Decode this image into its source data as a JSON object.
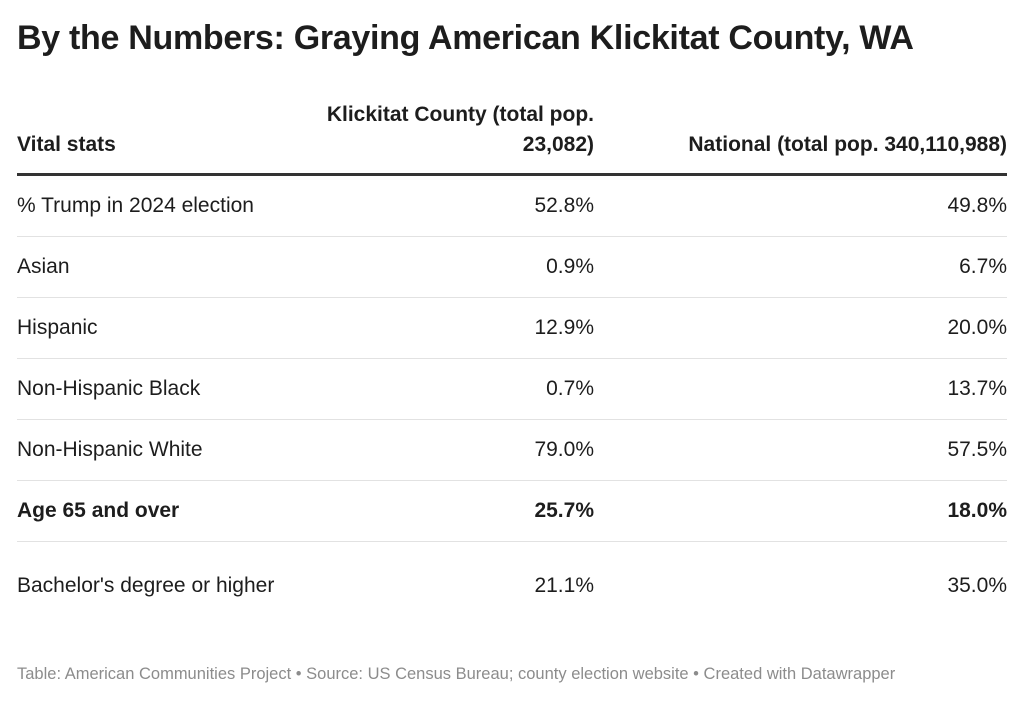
{
  "chart_data": {
    "type": "table",
    "title": "By the Numbers: Graying American Klickitat County, WA",
    "columns": [
      "Vital stats",
      "Klickitat County (total pop. 23,082)",
      "National (total pop. 340,110,988)"
    ],
    "rows": [
      {
        "label": "% Trump in 2024 election",
        "county": "52.8%",
        "national": "49.8%",
        "bold": false
      },
      {
        "label": "Asian",
        "county": "0.9%",
        "national": "6.7%",
        "bold": false
      },
      {
        "label": "Hispanic",
        "county": "12.9%",
        "national": "20.0%",
        "bold": false
      },
      {
        "label": "Non-Hispanic Black",
        "county": "0.7%",
        "national": "13.7%",
        "bold": false
      },
      {
        "label": "Non-Hispanic White",
        "county": "79.0%",
        "national": "57.5%",
        "bold": false
      },
      {
        "label": "Age 65 and over",
        "county": "25.7%",
        "national": "18.0%",
        "bold": true
      },
      {
        "label": "Bachelor's degree or higher",
        "county": "21.1%",
        "national": "35.0%",
        "bold": false
      }
    ],
    "footer": "Table: American Communities Project • Source: US Census Bureau; county election website • Created with Datawrapper"
  }
}
